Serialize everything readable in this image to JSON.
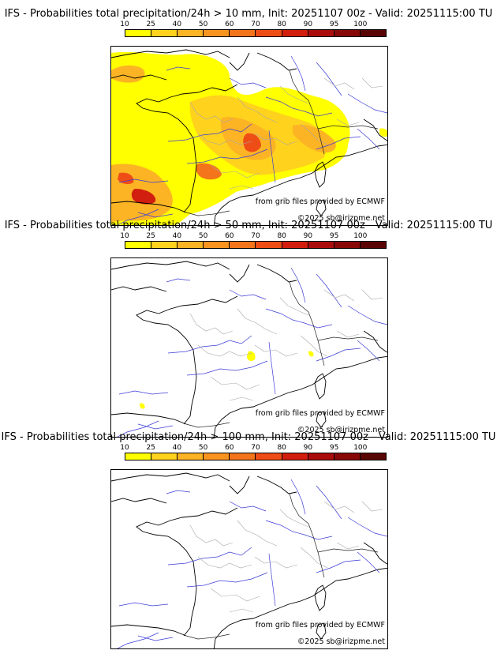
{
  "colorbar": {
    "ticks": [
      "10",
      "25",
      "40",
      "50",
      "60",
      "70",
      "80",
      "90",
      "95",
      "100"
    ],
    "colors": [
      "#ffff00",
      "#ffd21e",
      "#fcb424",
      "#f99420",
      "#f3741a",
      "#ee4d16",
      "#d21e0e",
      "#aa0c0c",
      "#880808",
      "#5a0505"
    ]
  },
  "panels": [
    {
      "title": "IFS - Probabilities total precipitation/24h > 10 mm, Init: 20251107 00z - Valid: 20251115:00 TU",
      "credit_source": "from grib files provided by ECMWF",
      "credit_copyright": "©2025 sb@irizpme.net"
    },
    {
      "title": "IFS - Probabilities total precipitation/24h > 50 mm, Init: 20251107 00z - Valid: 20251115:00 TU",
      "credit_source": "from grib files provided by ECMWF",
      "credit_copyright": "©2025 sb@irizpme.net"
    },
    {
      "title": "IFS - Probabilities total precipitation/24h > 100 mm, Init: 20251107 00z - Valid: 20251115:00 TU",
      "credit_source": "from grib files provided by ECMWF",
      "credit_copyright": "©2025 sb@irizpme.net"
    }
  ]
}
